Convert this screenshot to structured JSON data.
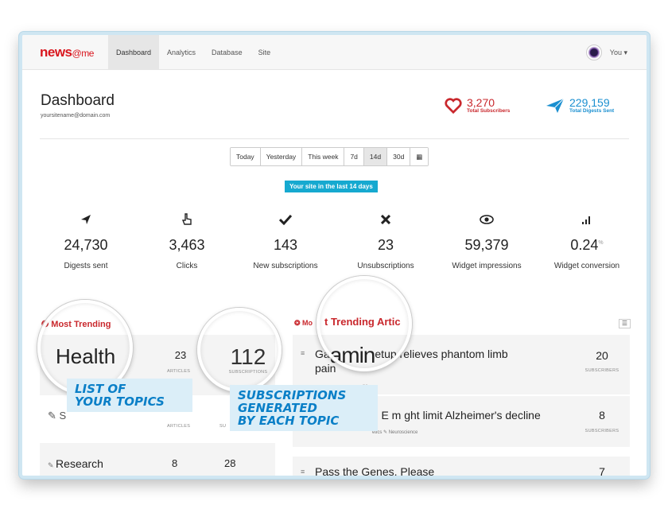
{
  "navbar": {
    "logo_main": "news",
    "logo_at": "@me",
    "items": [
      "Dashboard",
      "Analytics",
      "Database",
      "Site"
    ],
    "user": "You ▾"
  },
  "header": {
    "title": "Dashboard",
    "subtitle": "yoursitename@domain.com",
    "subscribers_value": "3,270",
    "subscribers_label": "Total Subscribers",
    "digests_value": "229,159",
    "digests_label": "Total Digests Sent"
  },
  "period": {
    "buttons": [
      "Today",
      "Yesterday",
      "This week",
      "7d",
      "14d",
      "30d",
      "▦"
    ],
    "active": "14d",
    "badge": "Your site in the last 14 days"
  },
  "metrics": [
    {
      "icon": "paper-plane",
      "value": "24,730",
      "label": "Digests sent"
    },
    {
      "icon": "pointer-hand",
      "value": "3,463",
      "label": "Clicks"
    },
    {
      "icon": "checkmark",
      "value": "143",
      "label": "New subscriptions"
    },
    {
      "icon": "x-mark",
      "value": "23",
      "label": "Unsubscriptions"
    },
    {
      "icon": "eye",
      "value": "59,379",
      "label": "Widget impressions"
    },
    {
      "icon": "signal-bars",
      "value": "0.24",
      "unit": "%",
      "label": "Widget conversion"
    }
  ],
  "left_panel": {
    "heading": "Most Trending",
    "topics": [
      {
        "name": "Health",
        "articles": "23",
        "articles_label": "ARTICLES",
        "subscriptions": "112",
        "subs_label": "SUBSCRIPTIONS"
      },
      {
        "name": "S",
        "articles": "",
        "articles_label": "ARTICLES",
        "subscriptions": "",
        "subs_label": "SU"
      },
      {
        "name": "Research",
        "articles": "8",
        "subscriptions": "28"
      }
    ]
  },
  "right_panel": {
    "heading_prefix": "Mo",
    "heading_zoom": "t Trending Artic",
    "articles": [
      {
        "title_a": "Ga",
        "title_zoom": "amin",
        "title_b": "etup relieves phantom limb",
        "title_c": "pain",
        "tags": "ne",
        "subscribers": "20",
        "subs_label": "SUBSCRIBERS"
      },
      {
        "title_a": "",
        "title_zoom": "",
        "title_b": "min E m ght limit Alzheimer's decline",
        "title_c": "",
        "tags": "etics  ✎ Neuroscience",
        "subscribers": "8",
        "subs_label": "SUBSCRIBERS"
      },
      {
        "title_a": "",
        "title_zoom": "",
        "title_b": "Pass the Genes, Please",
        "title_c": "",
        "tags": "",
        "subscribers": "7",
        "subs_label": ""
      }
    ]
  },
  "callouts": {
    "topics_line1": "LIST OF",
    "topics_line2": "YOUR TOPICS",
    "subs_line1": "SUBSCRIPTIONS",
    "subs_line2": "GENERATED",
    "subs_line3": "BY EACH TOPIC"
  },
  "colors": {
    "brand_red": "#d9161e",
    "accent_blue": "#1a8fd0",
    "badge_blue": "#16a9d0",
    "callout_bg": "#dbeef8"
  }
}
